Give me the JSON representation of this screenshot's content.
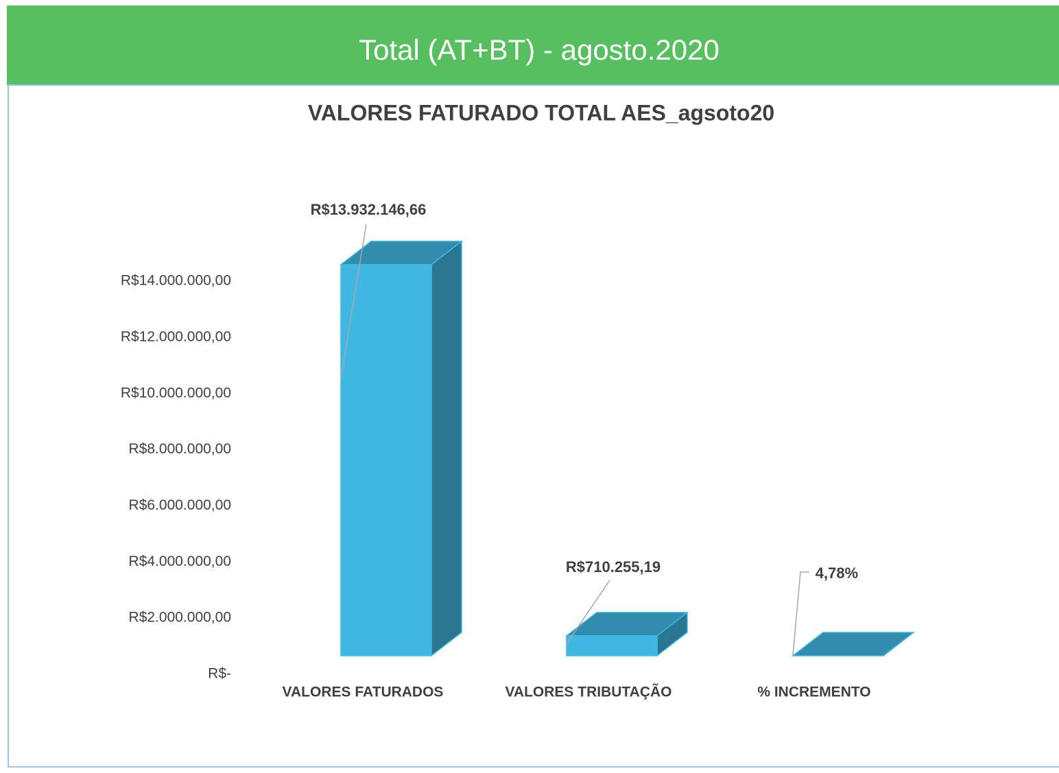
{
  "header": {
    "title": "Total (AT+BT) - agosto.2020"
  },
  "chart_data": {
    "type": "bar3d",
    "title": "VALORES  FATURADO TOTAL  AES_agsoto20",
    "categories": [
      "VALORES FATURADOS",
      "VALORES TRIBUTAÇÃO",
      "% INCREMENTO"
    ],
    "values": [
      13932146.66,
      710255.19,
      0.0478
    ],
    "value_labels": [
      "R$13.932.146,66",
      "R$710.255,19",
      "4,78%"
    ],
    "color": "#41b8e4",
    "ylim": [
      0,
      14000000
    ],
    "yticks": [
      {
        "value": 0,
        "label": "R$-"
      },
      {
        "value": 2000000,
        "label": "R$2.000.000,00"
      },
      {
        "value": 4000000,
        "label": "R$4.000.000,00"
      },
      {
        "value": 6000000,
        "label": "R$6.000.000,00"
      },
      {
        "value": 8000000,
        "label": "R$8.000.000,00"
      },
      {
        "value": 10000000,
        "label": "R$10.000.000,00"
      },
      {
        "value": 12000000,
        "label": "R$12.000.000,00"
      },
      {
        "value": 14000000,
        "label": "R$14.000.000,00"
      }
    ],
    "grid": false
  }
}
